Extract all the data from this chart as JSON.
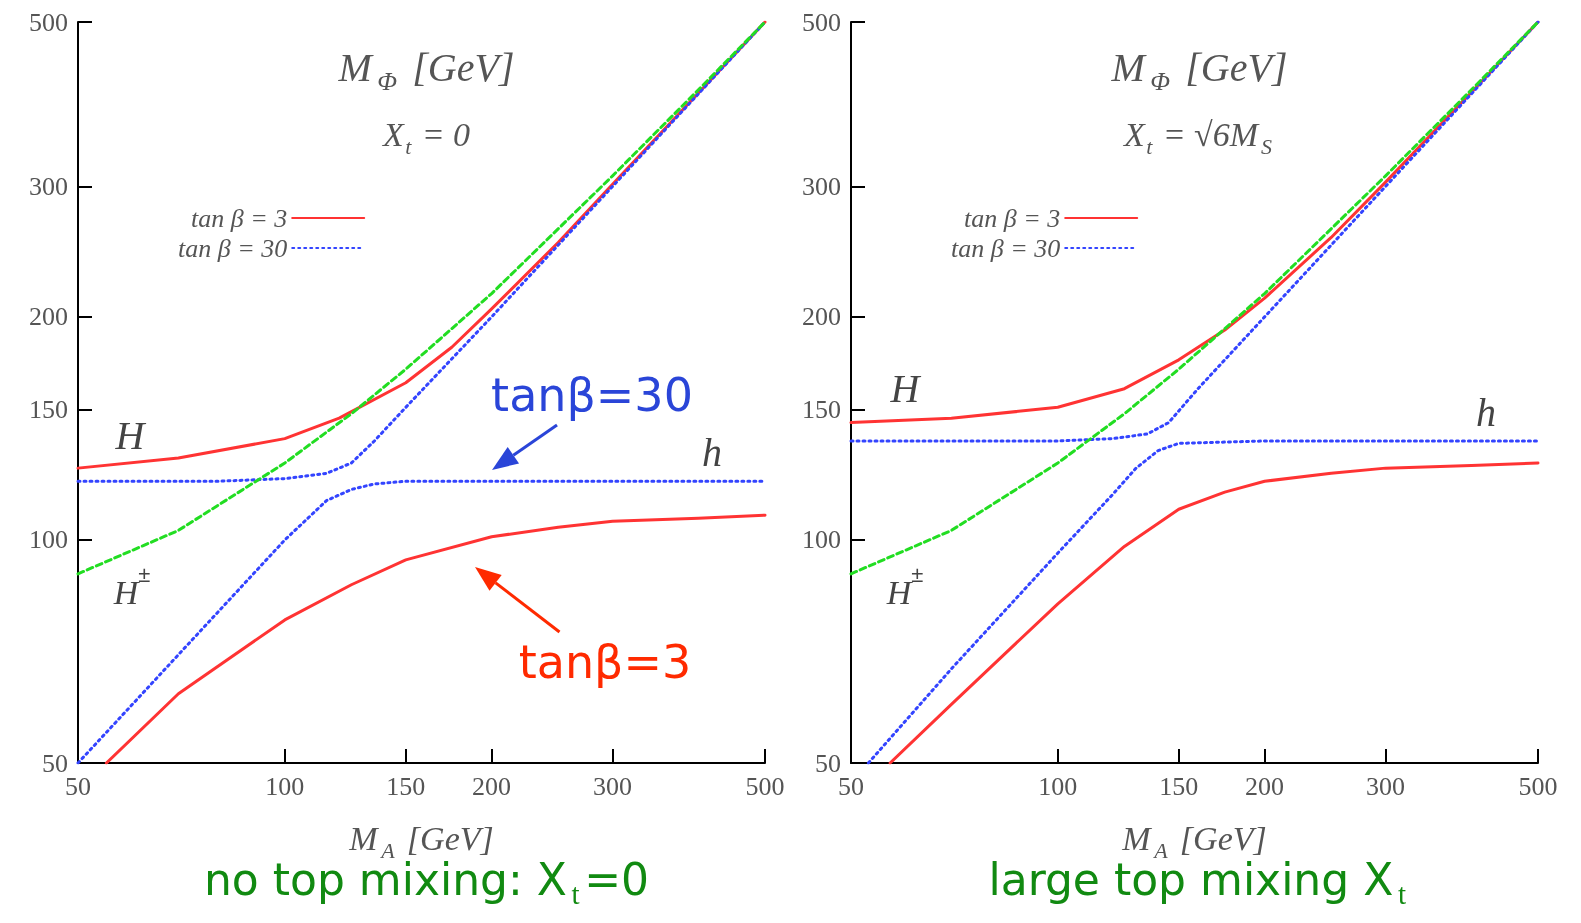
{
  "chart_data": [
    {
      "type": "line",
      "title": "M$_{Φ}$ [GeV]",
      "subtitle": "X$_{t}$ = 0",
      "xlabel": "M$_{A}$ [GeV]",
      "log": "xy",
      "grid": false,
      "legend": "top left",
      "marker": "none",
      "xlim": [
        50,
        500
      ],
      "xticks": [
        50,
        100,
        150,
        200,
        300,
        500
      ],
      "ylim": [
        50,
        500
      ],
      "yticks": [
        50,
        100,
        150,
        200,
        300,
        500
      ],
      "series": [
        {
          "name": "tan β = 3",
          "color": "#ff3333",
          "line_style": "solid",
          "x": [
            50,
            70,
            100,
            120,
            150,
            175,
            200,
            250,
            300,
            400,
            500
          ],
          "values": [
            125,
            129,
            137,
            146,
            163,
            182,
            205,
            252,
            302,
            401,
            500
          ]
        },
        {
          "name": "tan β = 30",
          "color": "#3344ff",
          "line_style": "dotted",
          "x": [
            50,
            80,
            100,
            115,
            125,
            135,
            150,
            200,
            300,
            500
          ],
          "values": [
            120,
            120,
            121,
            123,
            127,
            136,
            151,
            200,
            300,
            500
          ]
        },
        {
          "color": "#22dd22",
          "line_style": "dashed",
          "x": [
            50,
            70,
            100,
            125,
            150,
            200,
            300,
            400,
            500
          ],
          "values": [
            90,
            103,
            127,
            148,
            170,
            215,
            310,
            405,
            500
          ]
        },
        {
          "color": "#ff3333",
          "line_style": "solid",
          "x": [
            55,
            70,
            100,
            125,
            150,
            200,
            250,
            300,
            400,
            500
          ],
          "values": [
            50,
            62,
            78,
            87,
            94,
            101,
            104,
            106,
            107,
            108
          ]
        },
        {
          "color": "#3344ff",
          "line_style": "dotted",
          "x": [
            50,
            70,
            100,
            115,
            125,
            135,
            150,
            200,
            300,
            500
          ],
          "values": [
            50,
            70,
            100,
            113,
            117,
            119,
            120,
            120,
            120,
            120
          ]
        }
      ],
      "annotations": [
        "H",
        "h",
        "H$^{±}$",
        "tanβ=30",
        "tanβ=3",
        "no top mixing: X$_{t}$=0"
      ]
    },
    {
      "type": "line",
      "title": "M$_{Φ}$ [GeV]",
      "subtitle": "X$_{t}$ = √6M$_{S}$",
      "xlabel": "M$_{A}$ [GeV]",
      "log": "xy",
      "grid": false,
      "legend": "top left",
      "marker": "none",
      "xlim": [
        50,
        500
      ],
      "xticks": [
        50,
        100,
        150,
        200,
        300,
        500
      ],
      "ylim": [
        50,
        500
      ],
      "yticks": [
        50,
        100,
        150,
        200,
        300,
        500
      ],
      "series": [
        {
          "name": "tan β = 3",
          "color": "#ff3333",
          "line_style": "solid",
          "x": [
            50,
            70,
            100,
            125,
            150,
            175,
            200,
            250,
            300,
            400,
            500
          ],
          "values": [
            144,
            146,
            151,
            160,
            175,
            192,
            212,
            256,
            304,
            402,
            500
          ]
        },
        {
          "name": "tan β = 30",
          "color": "#3344ff",
          "line_style": "dotted",
          "x": [
            50,
            100,
            120,
            135,
            145,
            160,
            200,
            300,
            500
          ],
          "values": [
            136,
            136,
            137,
            139,
            144,
            160,
            200,
            300,
            500
          ]
        },
        {
          "color": "#22dd22",
          "line_style": "dashed",
          "x": [
            50,
            70,
            100,
            125,
            150,
            200,
            300,
            400,
            500
          ],
          "values": [
            90,
            103,
            127,
            148,
            170,
            215,
            310,
            405,
            500
          ]
        },
        {
          "color": "#ff3333",
          "line_style": "solid",
          "x": [
            57,
            70,
            100,
            125,
            150,
            175,
            200,
            250,
            300,
            400,
            500
          ],
          "values": [
            50,
            60,
            82,
            98,
            110,
            116,
            120,
            123,
            125,
            126,
            127
          ]
        },
        {
          "color": "#3344ff",
          "line_style": "dotted",
          "x": [
            53,
            70,
            100,
            120,
            130,
            140,
            150,
            200,
            300,
            500
          ],
          "values": [
            50,
            67,
            96,
            115,
            125,
            132,
            135,
            136,
            136,
            136
          ]
        }
      ],
      "annotations": [
        "H",
        "h",
        "H$^{±}$",
        "large top mixing X$_{t}$"
      ]
    }
  ]
}
